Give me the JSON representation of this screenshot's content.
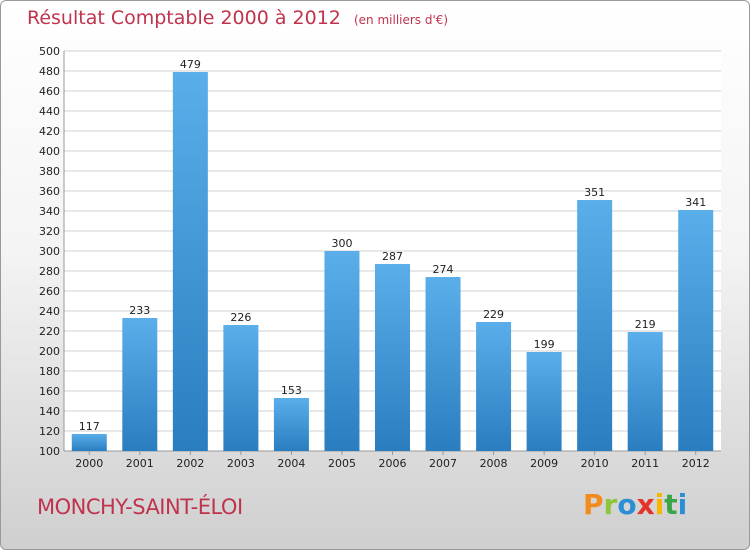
{
  "header": {
    "title": "Résultat Comptable 2000 à 2012",
    "subtitle": "(en milliers d'€)"
  },
  "footer": {
    "commune": "MONCHY-SAINT-ÉLOI",
    "logo_text": "Proxiti",
    "logo_colors": [
      "#f28c1e",
      "#8cc63f",
      "#2b8fd6",
      "#e5332a",
      "#f7b500",
      "#3ba54a",
      "#2b8fd6"
    ]
  },
  "colors": {
    "bar_top": "#5aaeea",
    "bar_bottom": "#2a7ec0",
    "gridline": "#d0d0d0",
    "title": "#c0334d"
  },
  "chart_data": {
    "type": "bar",
    "categories": [
      "2000",
      "2001",
      "2002",
      "2003",
      "2004",
      "2005",
      "2006",
      "2007",
      "2008",
      "2009",
      "2010",
      "2011",
      "2012"
    ],
    "values": [
      117,
      233,
      479,
      226,
      153,
      300,
      287,
      274,
      229,
      199,
      351,
      219,
      341
    ],
    "value_labels": [
      "117",
      "233",
      "479",
      "226",
      "153",
      "300",
      "287",
      "274",
      "229",
      "199",
      "351",
      "219",
      "341"
    ],
    "ylim": [
      100,
      500
    ],
    "yticks": [
      100,
      120,
      140,
      160,
      180,
      200,
      220,
      240,
      260,
      280,
      300,
      320,
      340,
      360,
      380,
      400,
      420,
      440,
      460,
      480,
      500
    ],
    "grid": true,
    "legend": "none"
  }
}
